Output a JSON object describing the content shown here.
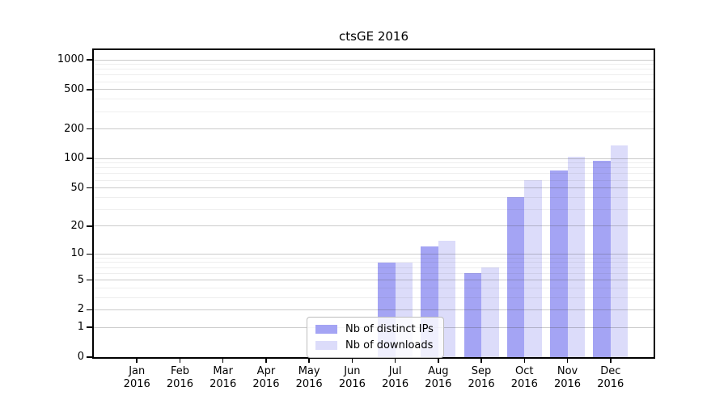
{
  "chart_data": {
    "type": "bar",
    "title": "ctsGE 2016",
    "categories": [
      "Jan",
      "Feb",
      "Mar",
      "Apr",
      "May",
      "Jun",
      "Jul",
      "Aug",
      "Sep",
      "Oct",
      "Nov",
      "Dec"
    ],
    "category_second_line": "2016",
    "series": [
      {
        "name": "Nb of distinct IPs",
        "color": "#a4a4f4",
        "values": [
          0,
          0,
          0,
          0,
          0,
          0,
          8,
          12,
          6,
          40,
          75,
          95
        ]
      },
      {
        "name": "Nb of downloads",
        "color": "#dcdcfa",
        "values": [
          0,
          0,
          0,
          0,
          0,
          0,
          8,
          14,
          7,
          60,
          105,
          137
        ]
      }
    ],
    "yscale": "log1p",
    "ylim": [
      0,
      1000
    ],
    "yticks": [
      0,
      1,
      2,
      5,
      10,
      20,
      50,
      100,
      200,
      500,
      1000
    ],
    "minor_yticks": [
      3,
      4,
      6,
      7,
      8,
      9,
      30,
      40,
      60,
      70,
      80,
      90,
      300,
      400,
      600,
      700,
      800,
      900
    ],
    "grid": "horizontal major+minor, drawn over bars",
    "legend_position": "inside bottom-center",
    "colors": {
      "axis": "#000000",
      "major_grid": "rgba(70,70,70,0.28)",
      "minor_grid": "rgba(70,70,70,0.09)",
      "background": "#ffffff"
    }
  }
}
